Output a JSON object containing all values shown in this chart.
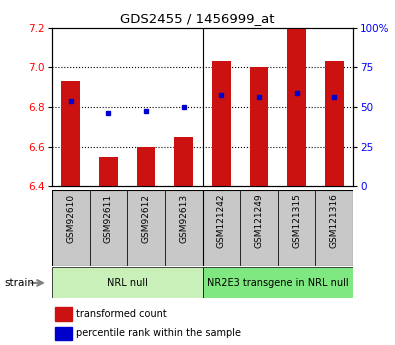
{
  "title": "GDS2455 / 1456999_at",
  "samples": [
    "GSM92610",
    "GSM92611",
    "GSM92612",
    "GSM92613",
    "GSM121242",
    "GSM121249",
    "GSM121315",
    "GSM121316"
  ],
  "red_values": [
    6.93,
    6.55,
    6.6,
    6.65,
    7.03,
    7.0,
    7.2,
    7.03
  ],
  "blue_values": [
    6.83,
    6.77,
    6.78,
    6.8,
    6.86,
    6.85,
    6.87,
    6.85
  ],
  "ylim_left": [
    6.4,
    7.2
  ],
  "ylim_right": [
    0,
    100
  ],
  "yticks_left": [
    6.4,
    6.6,
    6.8,
    7.0,
    7.2
  ],
  "yticks_right": [
    0,
    25,
    50,
    75,
    100
  ],
  "ytick_labels_right": [
    "0",
    "25",
    "50",
    "75",
    "100%"
  ],
  "group_configs": [
    {
      "start": 0,
      "end": 4,
      "label": "NRL null",
      "color": "#c8f0b8"
    },
    {
      "start": 4,
      "end": 8,
      "label": "NR2E3 transgene in NRL null",
      "color": "#80e880"
    }
  ],
  "group_split": 3.5,
  "bar_color": "#cc1111",
  "marker_color": "#0000cc",
  "bar_width": 0.5,
  "baseline": 6.4,
  "legend_items": [
    {
      "label": "transformed count",
      "color": "#cc1111"
    },
    {
      "label": "percentile rank within the sample",
      "color": "#0000cc"
    }
  ],
  "grid_lines": [
    6.6,
    6.8,
    7.0
  ],
  "tick_gray": "#c8c8c8",
  "spine_color": "#000000"
}
